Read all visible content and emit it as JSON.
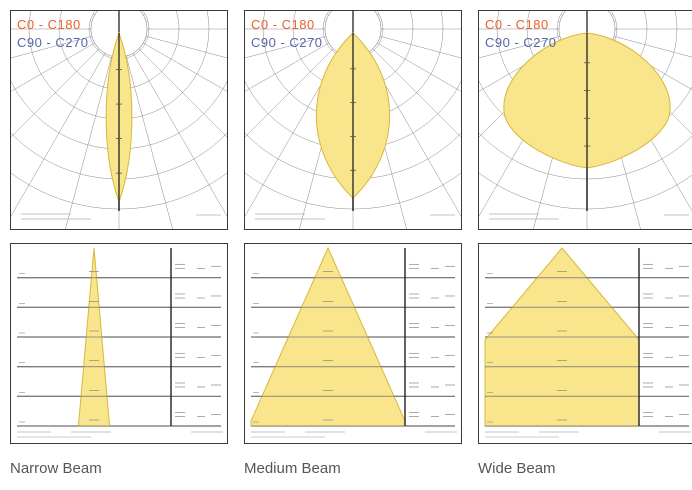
{
  "colors": {
    "c0_c180": "#e8622a",
    "c90_c270": "#5566aa",
    "beam_fill": "#f8e58c",
    "beam_stroke": "#d8b83a",
    "border": "#3a3a3a",
    "grid": "#8a8a8a",
    "label": "#555555"
  },
  "legend": {
    "c0_c180": "C0 - C180",
    "c90_c270": "C90 - C270"
  },
  "beams": [
    {
      "label": "Narrow Beam",
      "polar": {
        "half_angle_deg": 6,
        "reach": 0.97,
        "shape": "spindle"
      },
      "cone": {
        "half_angle_deg": 5
      }
    },
    {
      "label": "Medium Beam",
      "polar": {
        "half_angle_deg": 17,
        "reach": 0.95,
        "shape": "spindle"
      },
      "cone": {
        "half_angle_deg": 24
      }
    },
    {
      "label": "Wide Beam",
      "polar": {
        "half_angle_deg": 34,
        "reach": 0.78,
        "shape": "bulb"
      },
      "cone": {
        "half_angle_deg": 40
      }
    }
  ]
}
